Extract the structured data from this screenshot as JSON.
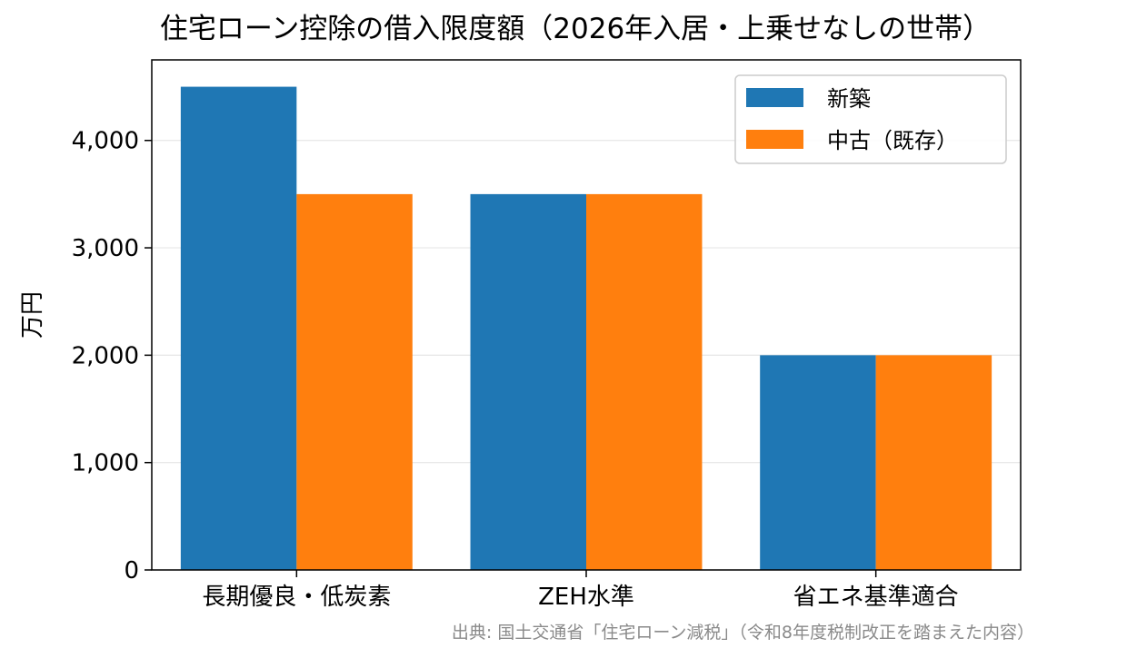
{
  "chart_data": {
    "type": "bar",
    "title": "住宅ローン控除の借入限度額（2026年入居・上乗せなしの世帯）",
    "xlabel": "",
    "ylabel": "万円",
    "categories": [
      "長期優良・低炭素",
      "ZEH水準",
      "省エネ基準適合"
    ],
    "series": [
      {
        "name": "新築",
        "color": "#1f77b4",
        "values": [
          4500,
          3500,
          2000
        ]
      },
      {
        "name": "中古（既存）",
        "color": "#ff7f0e",
        "values": [
          3500,
          3500,
          2000
        ]
      }
    ],
    "ylim": [
      0,
      4750
    ],
    "yticks": [
      0,
      1000,
      2000,
      3000,
      4000
    ],
    "ytick_labels": [
      "0",
      "1,000",
      "2,000",
      "3,000",
      "4,000"
    ],
    "grid": "horizontal",
    "legend_position": "upper right",
    "source_note": "出典: 国土交通省「住宅ローン減税」（令和8年度税制改正を踏まえた内容）"
  }
}
